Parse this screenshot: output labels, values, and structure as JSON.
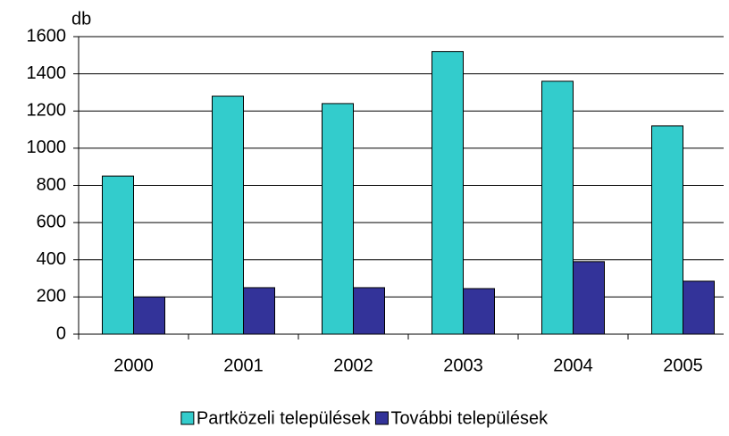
{
  "chart_data": {
    "type": "bar",
    "y_label": "db",
    "categories": [
      "2000",
      "2001",
      "2002",
      "2003",
      "2004",
      "2005"
    ],
    "series": [
      {
        "name": "Partközeli települések",
        "color": "#33cccc",
        "values": [
          850,
          1280,
          1240,
          1520,
          1360,
          1120
        ]
      },
      {
        "name": "További települések",
        "color": "#333399",
        "values": [
          200,
          250,
          250,
          245,
          390,
          285
        ]
      }
    ],
    "ylim": [
      0,
      1600
    ],
    "yticks": [
      0,
      200,
      400,
      600,
      800,
      1000,
      1200,
      1400,
      1600
    ],
    "grid": true,
    "legend": "bottom"
  }
}
